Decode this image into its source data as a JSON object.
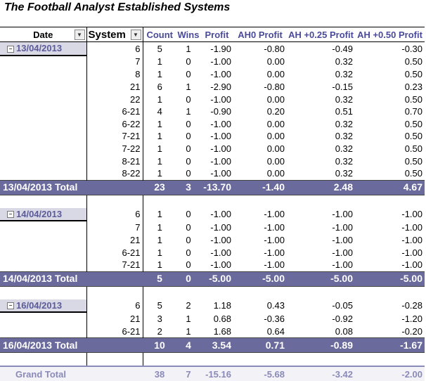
{
  "title": "The Football Analyst Established Systems",
  "headers": {
    "date": "Date",
    "system": "System",
    "count": "Count",
    "wins": "Wins",
    "profit": "Profit",
    "ah0": "AH0 Profit",
    "ah25": "AH +0.25 Profit",
    "ah50": "AH +0.50 Profit"
  },
  "icons": {
    "filter": "filter-dropdown-icon",
    "collapse": "collapse-minus-icon"
  },
  "groups": [
    {
      "date": "13/04/2013",
      "rows": [
        {
          "system": "6",
          "count": "5",
          "wins": "1",
          "profit": "-1.90",
          "ah0": "-0.80",
          "ah25": "-0.49",
          "ah50": "-0.30"
        },
        {
          "system": "7",
          "count": "1",
          "wins": "0",
          "profit": "-1.00",
          "ah0": "0.00",
          "ah25": "0.32",
          "ah50": "0.50"
        },
        {
          "system": "8",
          "count": "1",
          "wins": "0",
          "profit": "-1.00",
          "ah0": "0.00",
          "ah25": "0.32",
          "ah50": "0.50"
        },
        {
          "system": "21",
          "count": "6",
          "wins": "1",
          "profit": "-2.90",
          "ah0": "-0.80",
          "ah25": "-0.15",
          "ah50": "0.23"
        },
        {
          "system": "22",
          "count": "1",
          "wins": "0",
          "profit": "-1.00",
          "ah0": "0.00",
          "ah25": "0.32",
          "ah50": "0.50"
        },
        {
          "system": "6-21",
          "count": "4",
          "wins": "1",
          "profit": "-0.90",
          "ah0": "0.20",
          "ah25": "0.51",
          "ah50": "0.70"
        },
        {
          "system": "6-22",
          "count": "1",
          "wins": "0",
          "profit": "-1.00",
          "ah0": "0.00",
          "ah25": "0.32",
          "ah50": "0.50"
        },
        {
          "system": "7-21",
          "count": "1",
          "wins": "0",
          "profit": "-1.00",
          "ah0": "0.00",
          "ah25": "0.32",
          "ah50": "0.50"
        },
        {
          "system": "7-22",
          "count": "1",
          "wins": "0",
          "profit": "-1.00",
          "ah0": "0.00",
          "ah25": "0.32",
          "ah50": "0.50"
        },
        {
          "system": "8-21",
          "count": "1",
          "wins": "0",
          "profit": "-1.00",
          "ah0": "0.00",
          "ah25": "0.32",
          "ah50": "0.50"
        },
        {
          "system": "8-22",
          "count": "1",
          "wins": "0",
          "profit": "-1.00",
          "ah0": "0.00",
          "ah25": "0.32",
          "ah50": "0.50"
        }
      ],
      "total": {
        "label": "13/04/2013 Total",
        "count": "23",
        "wins": "3",
        "profit": "-13.70",
        "ah0": "-1.40",
        "ah25": "2.48",
        "ah50": "4.67"
      }
    },
    {
      "date": "14/04/2013",
      "rows": [
        {
          "system": "6",
          "count": "1",
          "wins": "0",
          "profit": "-1.00",
          "ah0": "-1.00",
          "ah25": "-1.00",
          "ah50": "-1.00"
        },
        {
          "system": "7",
          "count": "1",
          "wins": "0",
          "profit": "-1.00",
          "ah0": "-1.00",
          "ah25": "-1.00",
          "ah50": "-1.00"
        },
        {
          "system": "21",
          "count": "1",
          "wins": "0",
          "profit": "-1.00",
          "ah0": "-1.00",
          "ah25": "-1.00",
          "ah50": "-1.00"
        },
        {
          "system": "6-21",
          "count": "1",
          "wins": "0",
          "profit": "-1.00",
          "ah0": "-1.00",
          "ah25": "-1.00",
          "ah50": "-1.00"
        },
        {
          "system": "7-21",
          "count": "1",
          "wins": "0",
          "profit": "-1.00",
          "ah0": "-1.00",
          "ah25": "-1.00",
          "ah50": "-1.00"
        }
      ],
      "total": {
        "label": "14/04/2013 Total",
        "count": "5",
        "wins": "0",
        "profit": "-5.00",
        "ah0": "-5.00",
        "ah25": "-5.00",
        "ah50": "-5.00"
      }
    },
    {
      "date": "16/04/2013",
      "rows": [
        {
          "system": "6",
          "count": "5",
          "wins": "2",
          "profit": "1.18",
          "ah0": "0.43",
          "ah25": "-0.05",
          "ah50": "-0.28"
        },
        {
          "system": "21",
          "count": "3",
          "wins": "1",
          "profit": "0.68",
          "ah0": "-0.36",
          "ah25": "-0.92",
          "ah50": "-1.20"
        },
        {
          "system": "6-21",
          "count": "2",
          "wins": "1",
          "profit": "1.68",
          "ah0": "0.64",
          "ah25": "0.08",
          "ah50": "-0.20"
        }
      ],
      "total": {
        "label": "16/04/2013 Total",
        "count": "10",
        "wins": "4",
        "profit": "3.54",
        "ah0": "0.71",
        "ah25": "-0.89",
        "ah50": "-1.67"
      }
    }
  ],
  "grand_total": {
    "label": "Grand Total",
    "count": "38",
    "wins": "7",
    "profit": "-15.16",
    "ah0": "-5.68",
    "ah25": "-3.42",
    "ah50": "-2.00"
  }
}
